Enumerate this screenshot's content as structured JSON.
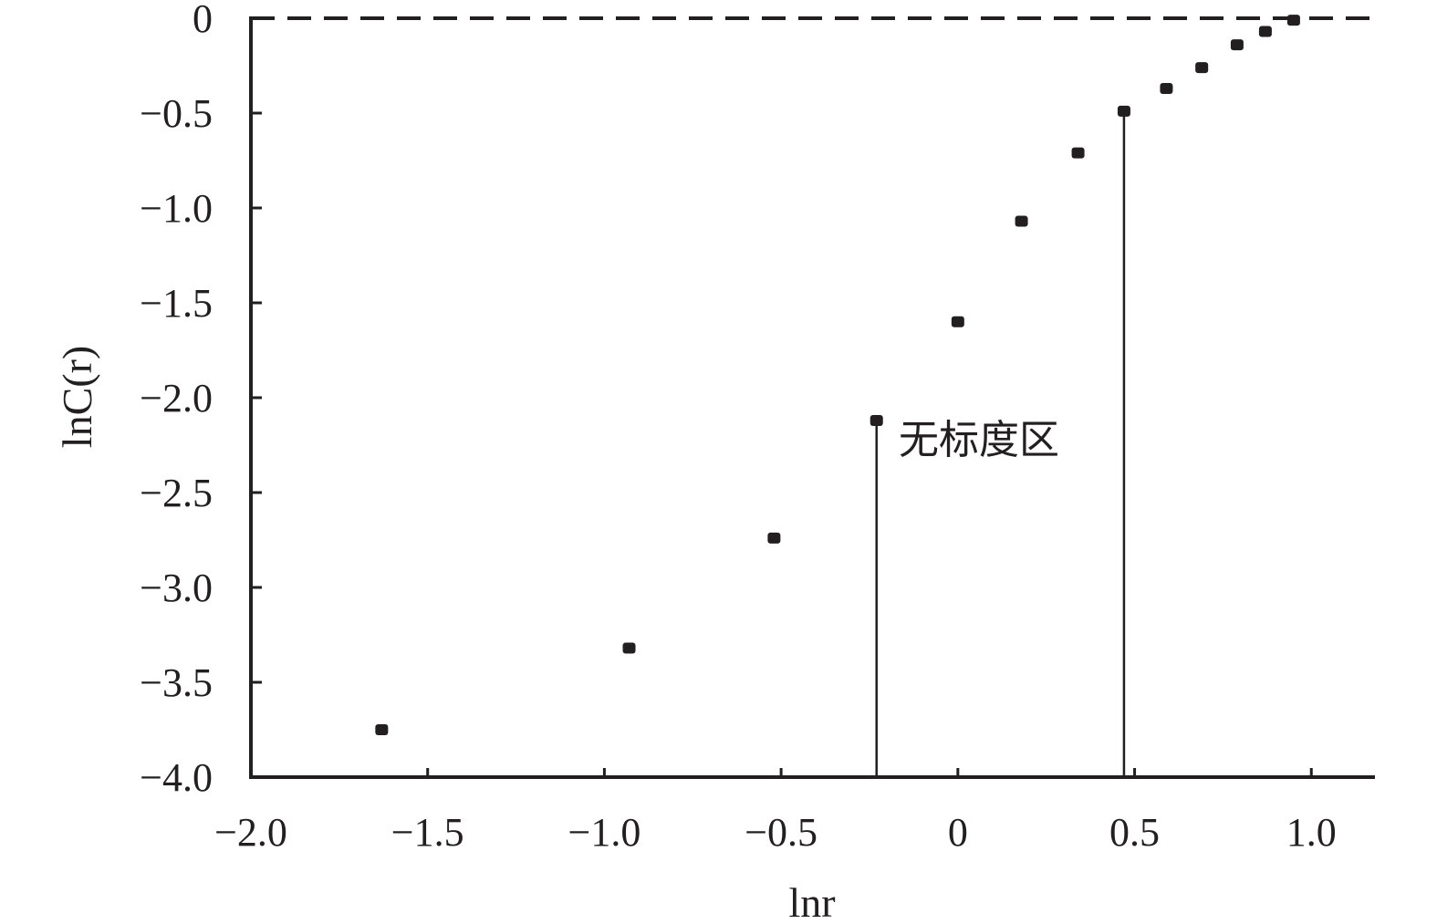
{
  "chart_data": {
    "type": "scatter",
    "xlabel": "lnr",
    "ylabel": "lnC(r)",
    "xlim": [
      -2.0,
      1.0
    ],
    "ylim": [
      -4.0,
      0
    ],
    "x_ticks": [
      -2.0,
      -1.5,
      -1.0,
      -0.5,
      0,
      0.5,
      1.0
    ],
    "y_ticks": [
      0,
      -0.5,
      -1.0,
      -1.5,
      -2.0,
      -2.5,
      -3.0,
      -3.5,
      -4.0
    ],
    "x_tick_labels": [
      "−2.0",
      "−1.5",
      "−1.0",
      "−0.5",
      "0",
      "0.5",
      "1.0"
    ],
    "y_tick_labels": [
      "0",
      "−0.5",
      "−1.0",
      "−1.5",
      "−2.0",
      "−2.5",
      "−3.0",
      "−3.5",
      "−4.0"
    ],
    "points": [
      {
        "x": -1.63,
        "y": -3.75
      },
      {
        "x": -0.93,
        "y": -3.32
      },
      {
        "x": -0.52,
        "y": -2.74
      },
      {
        "x": -0.23,
        "y": -2.12
      },
      {
        "x": 0.0,
        "y": -1.6
      },
      {
        "x": 0.18,
        "y": -1.07
      },
      {
        "x": 0.34,
        "y": -0.71
      },
      {
        "x": 0.47,
        "y": -0.49
      },
      {
        "x": 0.59,
        "y": -0.37
      },
      {
        "x": 0.69,
        "y": -0.26
      },
      {
        "x": 0.79,
        "y": -0.14
      },
      {
        "x": 0.87,
        "y": -0.07
      },
      {
        "x": 0.95,
        "y": -0.01
      }
    ],
    "reference_line_y": 0,
    "annotation": {
      "text": "无标度区",
      "region_x": [
        -0.23,
        0.47
      ]
    },
    "grid": false
  }
}
